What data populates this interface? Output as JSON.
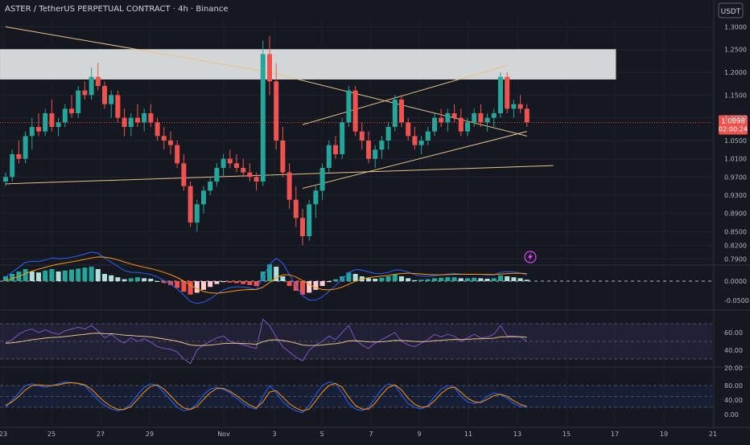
{
  "header": {
    "title": "ASTER / TetherUS PERPETUAL CONTRACT · 4h · Binance",
    "currency_button": "USDT"
  },
  "colors": {
    "background": "#151820",
    "up": "#26a69a",
    "down": "#ef5350",
    "trendline": "#e6c38a",
    "zone_fill": "#ffffff",
    "price_tag": "#ef5350",
    "macd_line": "#2962ff",
    "signal_line": "#ff9800",
    "rsi_line": "#7e57c2",
    "rsi_ma": "#e6c38a",
    "stoch_k": "#2962ff",
    "stoch_d": "#ff9800"
  },
  "icons": {
    "alert": "lightning-bolt-icon"
  },
  "price_tag": {
    "price": "1.0898",
    "countdown": "02:00:24"
  },
  "price_axis": [
    "1.3000",
    "1.2500",
    "1.2000",
    "1.1500",
    "1.1000",
    "1.0500",
    "1.0100",
    "0.9700",
    "0.9300",
    "0.8900",
    "0.8500",
    "0.8200",
    "0.7900"
  ],
  "macd_axis": [
    "0.0000",
    "-0.0500"
  ],
  "rsi_axis": [
    "60.00",
    "40.00",
    "20.00"
  ],
  "stoch_axis": [
    "80.00",
    "40.00",
    "0.00"
  ],
  "time_axis": [
    "23",
    "25",
    "27",
    "29",
    "Nov",
    "3",
    "5",
    "7",
    "9",
    "11",
    "13",
    "15",
    "17",
    "19",
    "21"
  ],
  "chart_data": {
    "type": "candlestick",
    "symbol": "ASTER / TetherUS PERPETUAL CONTRACT",
    "timeframe": "4h",
    "exchange": "Binance",
    "currency": "USDT",
    "last_price": 1.0898,
    "resistance_zone": [
      1.185,
      1.25
    ],
    "candles": [
      [
        0.96,
        0.98,
        0.95,
        0.97
      ],
      [
        0.97,
        1.03,
        0.96,
        1.02
      ],
      [
        1.02,
        1.05,
        1.0,
        1.01
      ],
      [
        1.01,
        1.07,
        1.0,
        1.06
      ],
      [
        1.06,
        1.1,
        1.03,
        1.08
      ],
      [
        1.08,
        1.11,
        1.06,
        1.07
      ],
      [
        1.07,
        1.12,
        1.06,
        1.11
      ],
      [
        1.11,
        1.14,
        1.07,
        1.08
      ],
      [
        1.08,
        1.1,
        1.06,
        1.09
      ],
      [
        1.09,
        1.13,
        1.08,
        1.12
      ],
      [
        1.12,
        1.15,
        1.1,
        1.11
      ],
      [
        1.11,
        1.17,
        1.1,
        1.16
      ],
      [
        1.16,
        1.18,
        1.14,
        1.15
      ],
      [
        1.15,
        1.21,
        1.14,
        1.19
      ],
      [
        1.19,
        1.22,
        1.16,
        1.17
      ],
      [
        1.17,
        1.18,
        1.12,
        1.13
      ],
      [
        1.13,
        1.16,
        1.1,
        1.15
      ],
      [
        1.15,
        1.16,
        1.09,
        1.1
      ],
      [
        1.1,
        1.12,
        1.06,
        1.08
      ],
      [
        1.08,
        1.11,
        1.06,
        1.1
      ],
      [
        1.1,
        1.13,
        1.08,
        1.09
      ],
      [
        1.09,
        1.12,
        1.07,
        1.11
      ],
      [
        1.11,
        1.13,
        1.08,
        1.09
      ],
      [
        1.09,
        1.1,
        1.05,
        1.06
      ],
      [
        1.06,
        1.08,
        1.03,
        1.05
      ],
      [
        1.05,
        1.07,
        1.02,
        1.04
      ],
      [
        1.04,
        1.05,
        0.99,
        1.0
      ],
      [
        1.0,
        1.02,
        0.94,
        0.95
      ],
      [
        0.95,
        0.96,
        0.86,
        0.87
      ],
      [
        0.87,
        0.92,
        0.85,
        0.91
      ],
      [
        0.91,
        0.95,
        0.89,
        0.94
      ],
      [
        0.94,
        0.97,
        0.93,
        0.96
      ],
      [
        0.96,
        1.0,
        0.95,
        0.99
      ],
      [
        0.99,
        1.02,
        0.97,
        1.01
      ],
      [
        1.01,
        1.03,
        0.99,
        1.0
      ],
      [
        1.0,
        1.02,
        0.98,
        0.99
      ],
      [
        0.99,
        1.01,
        0.97,
        0.98
      ],
      [
        0.98,
        1.0,
        0.96,
        0.97
      ],
      [
        0.97,
        0.98,
        0.94,
        0.96
      ],
      [
        0.96,
        1.27,
        0.95,
        1.24
      ],
      [
        1.24,
        1.28,
        1.15,
        1.18
      ],
      [
        1.18,
        1.22,
        1.03,
        1.05
      ],
      [
        1.05,
        1.08,
        0.97,
        0.98
      ],
      [
        0.98,
        1.0,
        0.9,
        0.92
      ],
      [
        0.92,
        0.95,
        0.86,
        0.88
      ],
      [
        0.88,
        0.9,
        0.82,
        0.84
      ],
      [
        0.84,
        0.92,
        0.83,
        0.91
      ],
      [
        0.91,
        0.95,
        0.88,
        0.94
      ],
      [
        0.94,
        1.0,
        0.92,
        0.99
      ],
      [
        0.99,
        1.05,
        0.98,
        1.04
      ],
      [
        1.04,
        1.06,
        1.01,
        1.02
      ],
      [
        1.02,
        1.1,
        1.01,
        1.09
      ],
      [
        1.09,
        1.17,
        1.08,
        1.16
      ],
      [
        1.16,
        1.17,
        1.06,
        1.07
      ],
      [
        1.07,
        1.09,
        1.03,
        1.05
      ],
      [
        1.05,
        1.07,
        1.0,
        1.01
      ],
      [
        1.01,
        1.04,
        0.99,
        1.03
      ],
      [
        1.03,
        1.06,
        1.01,
        1.05
      ],
      [
        1.05,
        1.09,
        1.03,
        1.08
      ],
      [
        1.08,
        1.15,
        1.07,
        1.14
      ],
      [
        1.14,
        1.15,
        1.08,
        1.09
      ],
      [
        1.09,
        1.1,
        1.05,
        1.06
      ],
      [
        1.06,
        1.08,
        1.03,
        1.04
      ],
      [
        1.04,
        1.06,
        1.02,
        1.05
      ],
      [
        1.05,
        1.08,
        1.04,
        1.07
      ],
      [
        1.07,
        1.11,
        1.06,
        1.1
      ],
      [
        1.1,
        1.12,
        1.08,
        1.09
      ],
      [
        1.09,
        1.12,
        1.07,
        1.11
      ],
      [
        1.11,
        1.13,
        1.09,
        1.1
      ],
      [
        1.1,
        1.12,
        1.06,
        1.07
      ],
      [
        1.07,
        1.1,
        1.06,
        1.09
      ],
      [
        1.09,
        1.12,
        1.08,
        1.11
      ],
      [
        1.11,
        1.13,
        1.08,
        1.09
      ],
      [
        1.09,
        1.11,
        1.07,
        1.1
      ],
      [
        1.1,
        1.12,
        1.08,
        1.11
      ],
      [
        1.11,
        1.2,
        1.1,
        1.19
      ],
      [
        1.19,
        1.2,
        1.11,
        1.12
      ],
      [
        1.12,
        1.14,
        1.1,
        1.13
      ],
      [
        1.13,
        1.15,
        1.11,
        1.12
      ],
      [
        1.12,
        1.13,
        1.08,
        1.09
      ]
    ],
    "macd_histogram": [
      0.01,
      0.015,
      0.02,
      0.025,
      0.02,
      0.018,
      0.022,
      0.025,
      0.02,
      0.022,
      0.024,
      0.026,
      0.028,
      0.03,
      0.025,
      0.015,
      0.012,
      0.008,
      0.004,
      0.006,
      0.008,
      0.006,
      0.005,
      0.0,
      -0.004,
      -0.008,
      -0.014,
      -0.022,
      -0.028,
      -0.024,
      -0.018,
      -0.012,
      -0.006,
      -0.002,
      -0.003,
      -0.004,
      -0.006,
      -0.008,
      -0.01,
      0.02,
      0.035,
      0.03,
      0.01,
      -0.01,
      -0.02,
      -0.028,
      -0.024,
      -0.018,
      -0.01,
      -0.002,
      0.004,
      0.01,
      0.018,
      0.015,
      0.01,
      0.006,
      0.005,
      0.007,
      0.01,
      0.014,
      0.01,
      0.006,
      0.002,
      0.003,
      0.004,
      0.006,
      0.007,
      0.008,
      0.008,
      0.006,
      0.006,
      0.007,
      0.006,
      0.005,
      0.006,
      0.012,
      0.01,
      0.008,
      0.006,
      0.003
    ],
    "rsi": [
      48,
      52,
      58,
      62,
      64,
      60,
      63,
      60,
      58,
      62,
      64,
      66,
      64,
      68,
      62,
      54,
      58,
      52,
      48,
      54,
      50,
      53,
      49,
      44,
      42,
      41,
      38,
      30,
      25,
      40,
      46,
      50,
      54,
      56,
      50,
      48,
      46,
      44,
      42,
      75,
      68,
      55,
      44,
      38,
      32,
      28,
      40,
      46,
      50,
      56,
      52,
      60,
      68,
      52,
      46,
      42,
      48,
      52,
      56,
      60,
      50,
      46,
      44,
      48,
      52,
      58,
      55,
      58,
      56,
      50,
      54,
      58,
      54,
      55,
      58,
      68,
      56,
      56,
      55,
      50
    ],
    "rsi_ma_level": 52,
    "stoch_k": [
      20,
      40,
      60,
      80,
      85,
      80,
      75,
      80,
      85,
      90,
      88,
      85,
      80,
      60,
      40,
      25,
      15,
      10,
      15,
      30,
      55,
      75,
      85,
      80,
      60,
      40,
      20,
      10,
      15,
      30,
      55,
      70,
      75,
      70,
      60,
      45,
      30,
      20,
      15,
      50,
      80,
      60,
      35,
      20,
      10,
      5,
      25,
      55,
      80,
      90,
      85,
      60,
      30,
      15,
      10,
      20,
      45,
      70,
      85,
      80,
      55,
      30,
      20,
      15,
      25,
      50,
      70,
      80,
      75,
      50,
      35,
      30,
      35,
      50,
      60,
      55,
      45,
      30,
      22,
      20
    ],
    "stoch_d": [
      25,
      35,
      50,
      68,
      80,
      82,
      80,
      80,
      82,
      86,
      88,
      86,
      82,
      70,
      52,
      35,
      22,
      14,
      14,
      22,
      42,
      62,
      78,
      82,
      70,
      52,
      32,
      18,
      14,
      22,
      42,
      60,
      72,
      72,
      64,
      52,
      38,
      26,
      18,
      35,
      62,
      66,
      48,
      30,
      18,
      10,
      15,
      38,
      62,
      80,
      86,
      75,
      48,
      25,
      15,
      15,
      32,
      55,
      75,
      82,
      68,
      45,
      28,
      20,
      22,
      38,
      58,
      72,
      76,
      62,
      45,
      35,
      33,
      42,
      52,
      56,
      50,
      38,
      28,
      22
    ],
    "trendlines": [
      {
        "from": [
          0,
          1.3
        ],
        "to": [
          40,
          1.2
        ]
      },
      {
        "from": [
          40,
          1.2
        ],
        "to": [
          79,
          1.06
        ]
      },
      {
        "from": [
          0,
          0.955
        ],
        "to": [
          83,
          0.995
        ]
      },
      {
        "from": [
          45,
          0.945
        ],
        "to": [
          79,
          1.07
        ]
      },
      {
        "from": [
          45,
          1.085
        ],
        "to": [
          76,
          1.215
        ]
      }
    ]
  }
}
